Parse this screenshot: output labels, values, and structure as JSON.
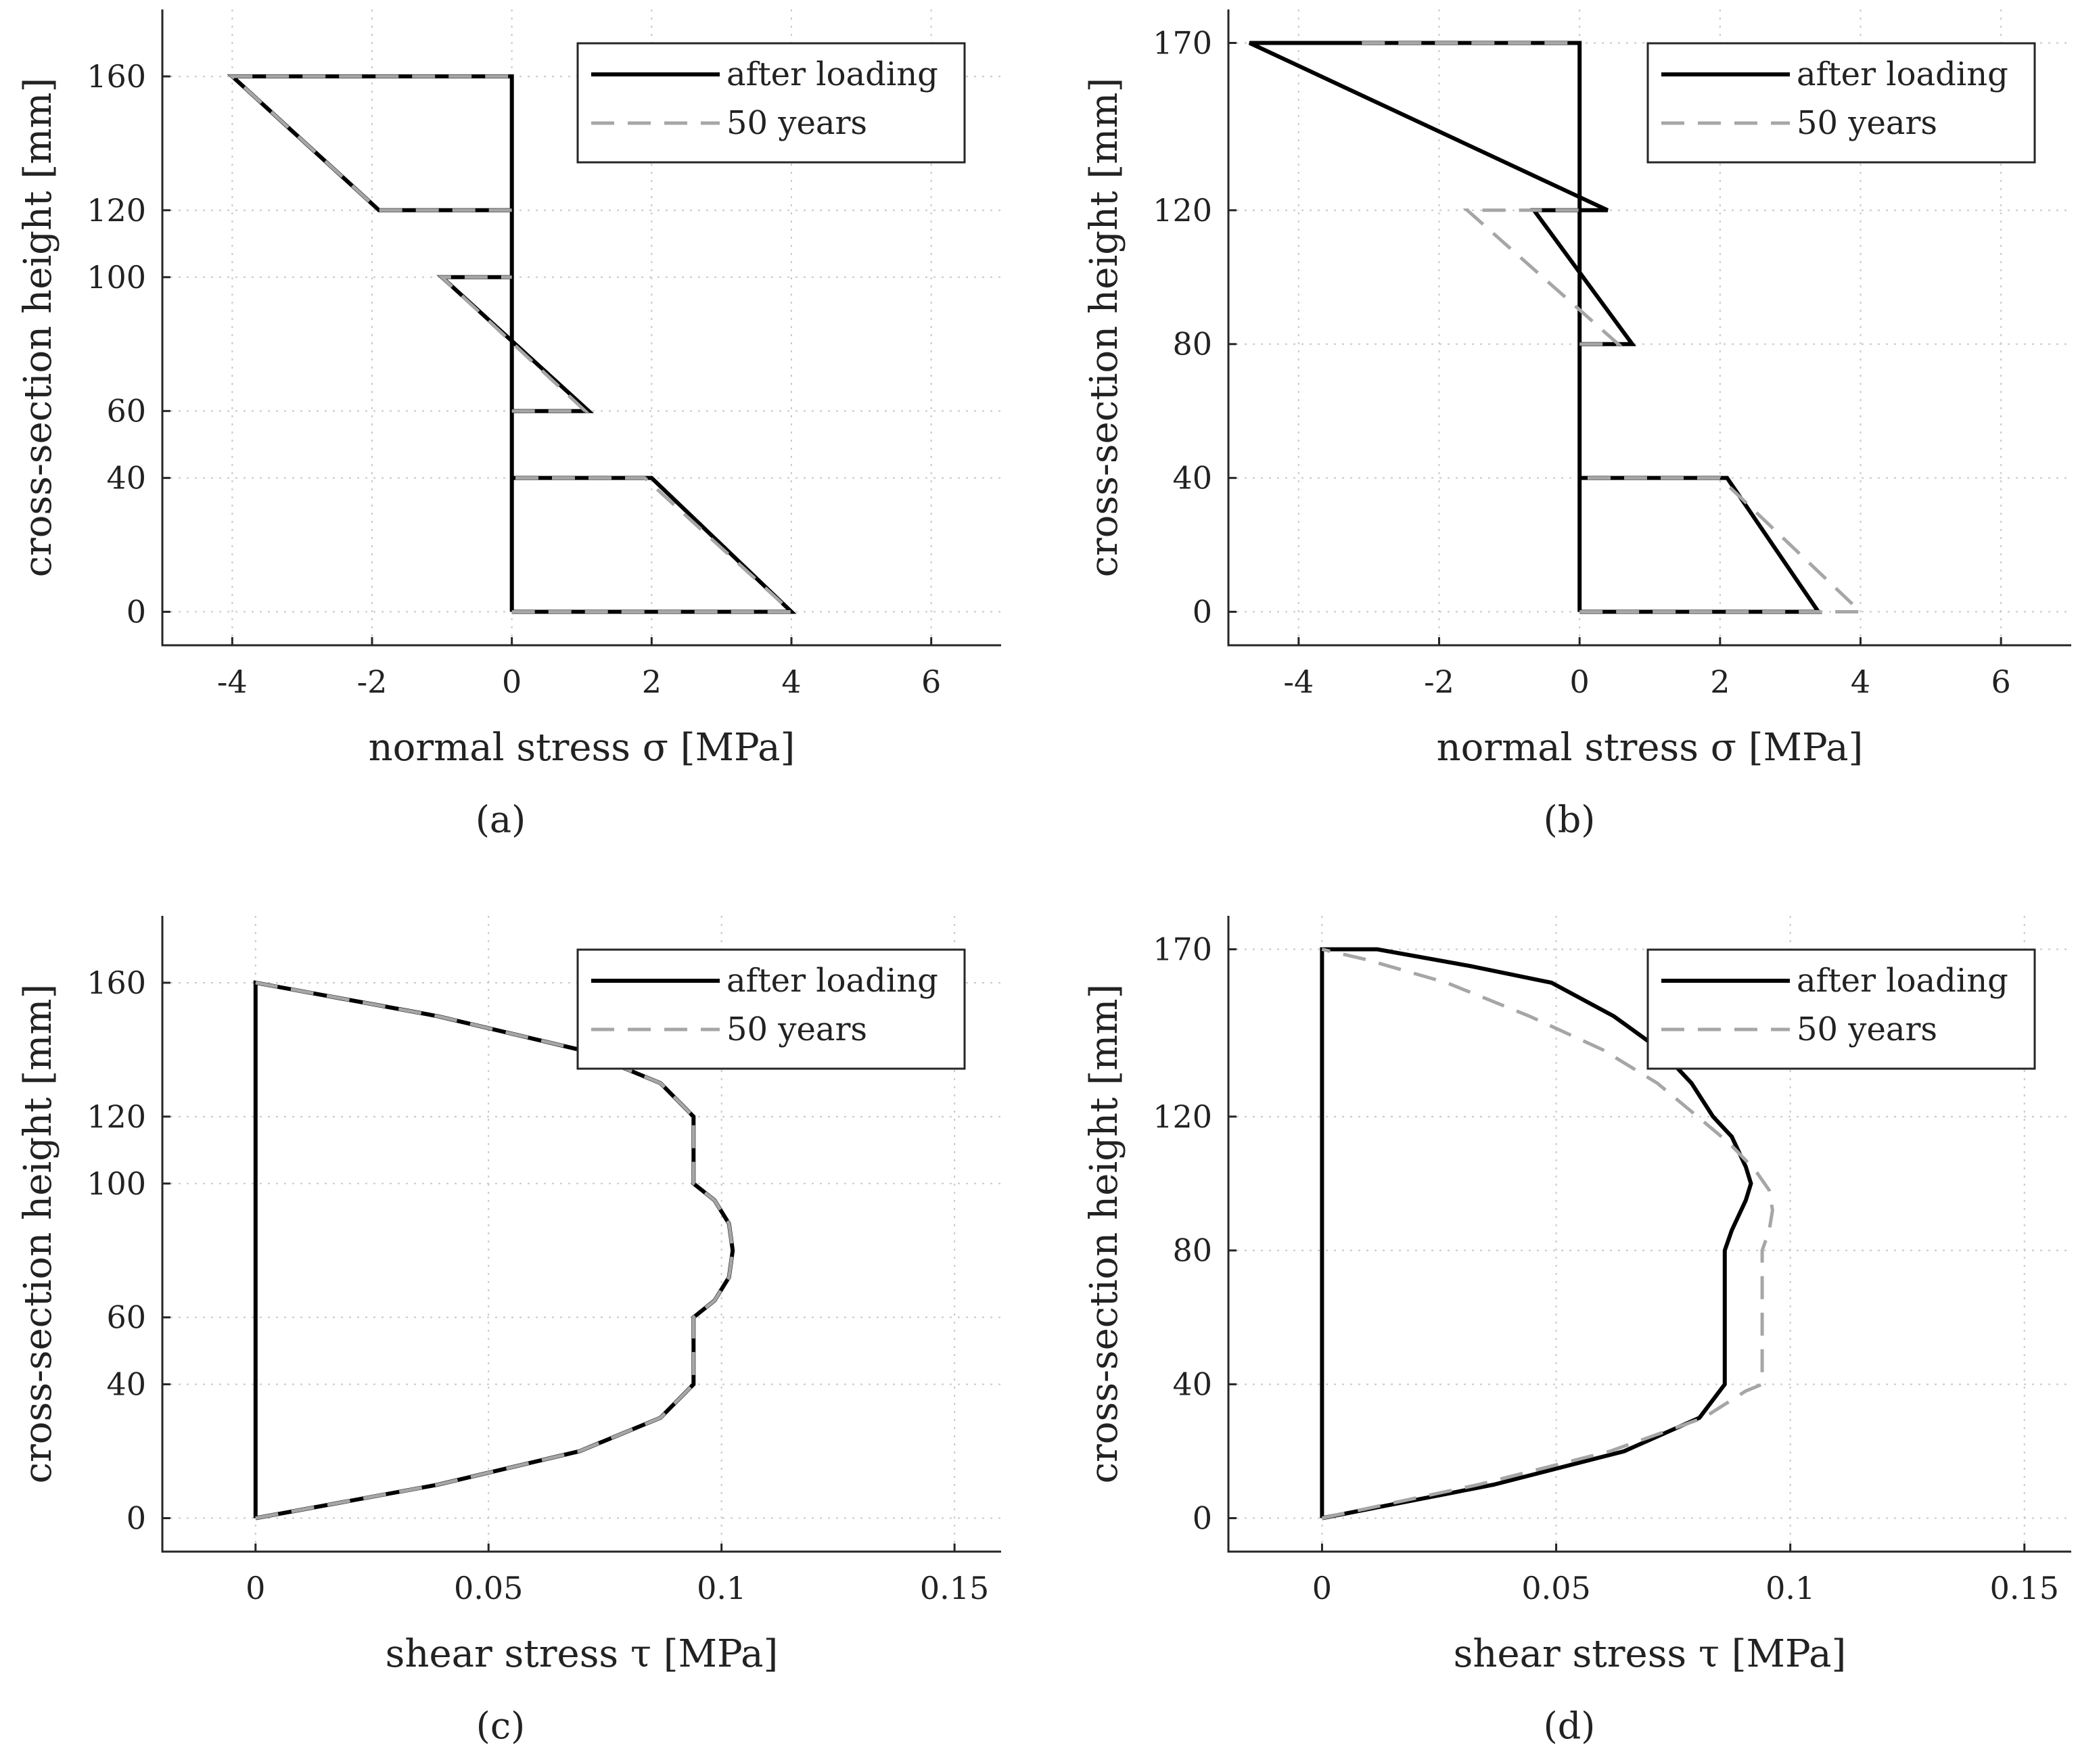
{
  "chart_data": [
    {
      "type": "line",
      "panel_label": "(a)",
      "xlabel": "normal stress σ [MPa]",
      "ylabel": "cross-section height [mm]",
      "xlim": [
        -5,
        7
      ],
      "ylim": [
        -10,
        180
      ],
      "xticks": [
        -4,
        -2,
        0,
        2,
        4,
        6
      ],
      "xtick_labels": [
        "-4",
        "-2",
        "0",
        "2",
        "4",
        "6"
      ],
      "yticks": [
        0,
        40,
        60,
        100,
        120,
        160
      ],
      "ytick_labels": [
        "0",
        "40",
        "60",
        "100",
        "120",
        "160"
      ],
      "grid": true,
      "legend_position": "top-right",
      "series": [
        {
          "name": "after loading",
          "style": "solid",
          "color": "#000000",
          "x": [
            0,
            4,
            2,
            0,
            0,
            0,
            1.1,
            -1,
            0,
            0,
            0,
            -1.9,
            -4,
            0,
            0
          ],
          "y": [
            0,
            0,
            40,
            40,
            0,
            60,
            60,
            100,
            100,
            60,
            120,
            120,
            160,
            160,
            120
          ]
        },
        {
          "name": "50 years",
          "style": "dashed",
          "color": "#a6a6a6",
          "x": [
            0,
            4,
            1.9,
            0,
            null,
            0,
            1.05,
            -1,
            0,
            null,
            0,
            -1.9,
            -4,
            0
          ],
          "y": [
            0,
            0,
            40,
            40,
            null,
            60,
            60,
            100,
            100,
            null,
            120,
            120,
            160,
            160
          ]
        }
      ]
    },
    {
      "type": "line",
      "panel_label": "(b)",
      "xlabel": "normal stress σ [MPa]",
      "ylabel": "cross-section height [mm]",
      "xlim": [
        -5,
        7
      ],
      "ylim": [
        -10,
        180
      ],
      "xticks": [
        -4,
        -2,
        0,
        2,
        4,
        6
      ],
      "xtick_labels": [
        "-4",
        "-2",
        "0",
        "2",
        "4",
        "6"
      ],
      "yticks": [
        0,
        40,
        80,
        120,
        170
      ],
      "ytick_labels": [
        "0",
        "40",
        "80",
        "120",
        "170"
      ],
      "grid": true,
      "legend_position": "top-right",
      "series": [
        {
          "name": "after loading",
          "style": "solid",
          "color": "#000000",
          "x": [
            0,
            3.4,
            2.1,
            0,
            0,
            0,
            0.75,
            -0.65,
            0.4,
            -4.7,
            0,
            0
          ],
          "y": [
            0,
            0,
            40,
            40,
            0,
            80,
            80,
            120,
            120,
            170,
            170,
            0
          ]
        },
        {
          "name": "50 years",
          "style": "dashed",
          "color": "#a6a6a6",
          "x": [
            0,
            4,
            2,
            0,
            null,
            0,
            0.55,
            -1.6,
            0,
            null,
            -3.1,
            0
          ],
          "y": [
            0,
            0,
            40,
            40,
            null,
            80,
            80,
            120,
            120,
            null,
            170,
            170
          ]
        }
      ]
    },
    {
      "type": "line",
      "panel_label": "(c)",
      "xlabel": "shear stress τ [MPa]",
      "ylabel": "cross-section height [mm]",
      "xlim": [
        -0.02,
        0.16
      ],
      "ylim": [
        -10,
        180
      ],
      "xticks": [
        0,
        0.05,
        0.1,
        0.15
      ],
      "xtick_labels": [
        "0",
        "0.05",
        "0.1",
        "0.15"
      ],
      "yticks": [
        0,
        40,
        60,
        100,
        120,
        160
      ],
      "ytick_labels": [
        "0",
        "40",
        "60",
        "100",
        "120",
        "160"
      ],
      "grid": true,
      "legend_position": "top-right",
      "series": [
        {
          "name": "after loading",
          "style": "solid",
          "color": "#000000",
          "x": [
            0,
            0,
            0.0391,
            0.0695,
            0.0869,
            0.094,
            0.094,
            0.094,
            0.0985,
            0.1016,
            0.1024,
            0.1016,
            0.0985,
            0.094,
            0.094,
            0.094,
            0.0869,
            0.0695,
            0.0391,
            0,
            0
          ],
          "y": [
            0,
            0,
            10,
            20,
            30,
            40,
            50,
            60,
            65,
            72,
            80,
            88,
            95,
            100,
            110,
            120,
            130,
            140,
            150,
            160,
            0
          ]
        },
        {
          "name": "50 years",
          "style": "dashed",
          "color": "#a6a6a6",
          "x": [
            0,
            0.0391,
            0.0695,
            0.0869,
            0.094,
            0.094,
            0.094,
            0.0985,
            0.1016,
            0.1024,
            0.1016,
            0.0985,
            0.094,
            0.094,
            0.094,
            0.0869,
            0.0695,
            0.0391,
            0
          ],
          "y": [
            0,
            10,
            20,
            30,
            40,
            50,
            60,
            65,
            72,
            80,
            88,
            95,
            100,
            110,
            120,
            130,
            140,
            150,
            160
          ]
        }
      ]
    },
    {
      "type": "line",
      "panel_label": "(d)",
      "xlabel": "shear stress τ [MPa]",
      "ylabel": "cross-section height [mm]",
      "xlim": [
        -0.02,
        0.16
      ],
      "ylim": [
        -10,
        180
      ],
      "xticks": [
        0,
        0.05,
        0.1,
        0.15
      ],
      "xtick_labels": [
        "0",
        "0.05",
        "0.1",
        "0.15"
      ],
      "yticks": [
        0,
        40,
        80,
        120,
        170
      ],
      "ytick_labels": [
        "0",
        "40",
        "80",
        "120",
        "170"
      ],
      "grid": true,
      "legend_position": "top-right",
      "series": [
        {
          "name": "after loading",
          "style": "solid",
          "color": "#000000",
          "x": [
            0,
            0.0366,
            0.0645,
            0.0806,
            0.086,
            0.086,
            0.0875,
            0.0905,
            0.0916,
            0.0905,
            0.0875,
            0.0835,
            0.0789,
            0.0722,
            0.0623,
            0.049,
            0.0316,
            0.0118,
            0,
            0
          ],
          "y": [
            0,
            10,
            20,
            30,
            40,
            80,
            86,
            95,
            100,
            105,
            114,
            120,
            130,
            140,
            150,
            160,
            165,
            170,
            170,
            0
          ]
        },
        {
          "name": "50 years",
          "style": "dashed",
          "color": "#a6a6a6",
          "x": [
            0,
            0.0333,
            0.0615,
            0.0815,
            0.0905,
            0.094,
            0.094,
            0.094,
            0.0955,
            0.0962,
            0.0955,
            0.0925,
            0.087,
            0.0802,
            0.0716,
            0.0599,
            0.0443,
            0.0266,
            0.0092,
            0
          ],
          "y": [
            0,
            10,
            20,
            30,
            38,
            40,
            60,
            80,
            86,
            92,
            98,
            104,
            112,
            120,
            130,
            140,
            150,
            160,
            167,
            170
          ]
        }
      ]
    }
  ]
}
